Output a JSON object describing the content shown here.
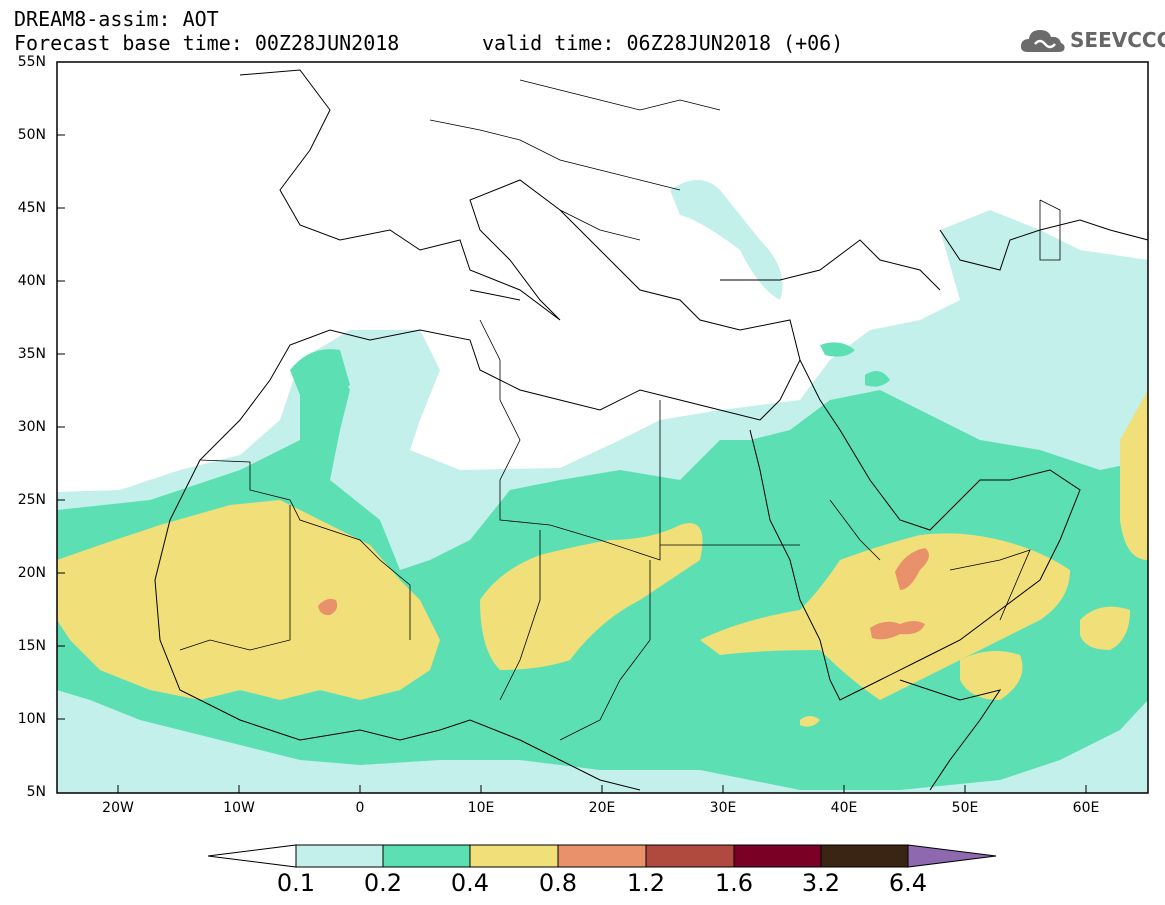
{
  "header": {
    "title": "DREAM8-assim: AOT",
    "base_time": "Forecast base time: 00Z28JUN2018",
    "valid_time": "valid time: 06Z28JUN2018 (+06)",
    "logo_text": "SEEVCCC"
  },
  "map": {
    "variable": "AOT",
    "lat_ticks": [
      "55N",
      "50N",
      "45N",
      "40N",
      "35N",
      "30N",
      "25N",
      "20N",
      "15N",
      "10N",
      "5N"
    ],
    "lon_ticks": [
      "20W",
      "10W",
      "0",
      "10E",
      "20E",
      "30E",
      "40E",
      "50E",
      "60E"
    ],
    "extent": {
      "lon_min": -25,
      "lon_max": 65,
      "lat_min": 5,
      "lat_max": 55
    }
  },
  "legend": {
    "levels": [
      "0.1",
      "0.2",
      "0.4",
      "0.8",
      "1.2",
      "1.6",
      "3.2",
      "6.4"
    ],
    "colors": [
      "#c3f0ea",
      "#5ddfb4",
      "#f1e07a",
      "#e8916a",
      "#b0493e",
      "#7b0026",
      "#3a2414",
      "#8e69b0"
    ]
  }
}
